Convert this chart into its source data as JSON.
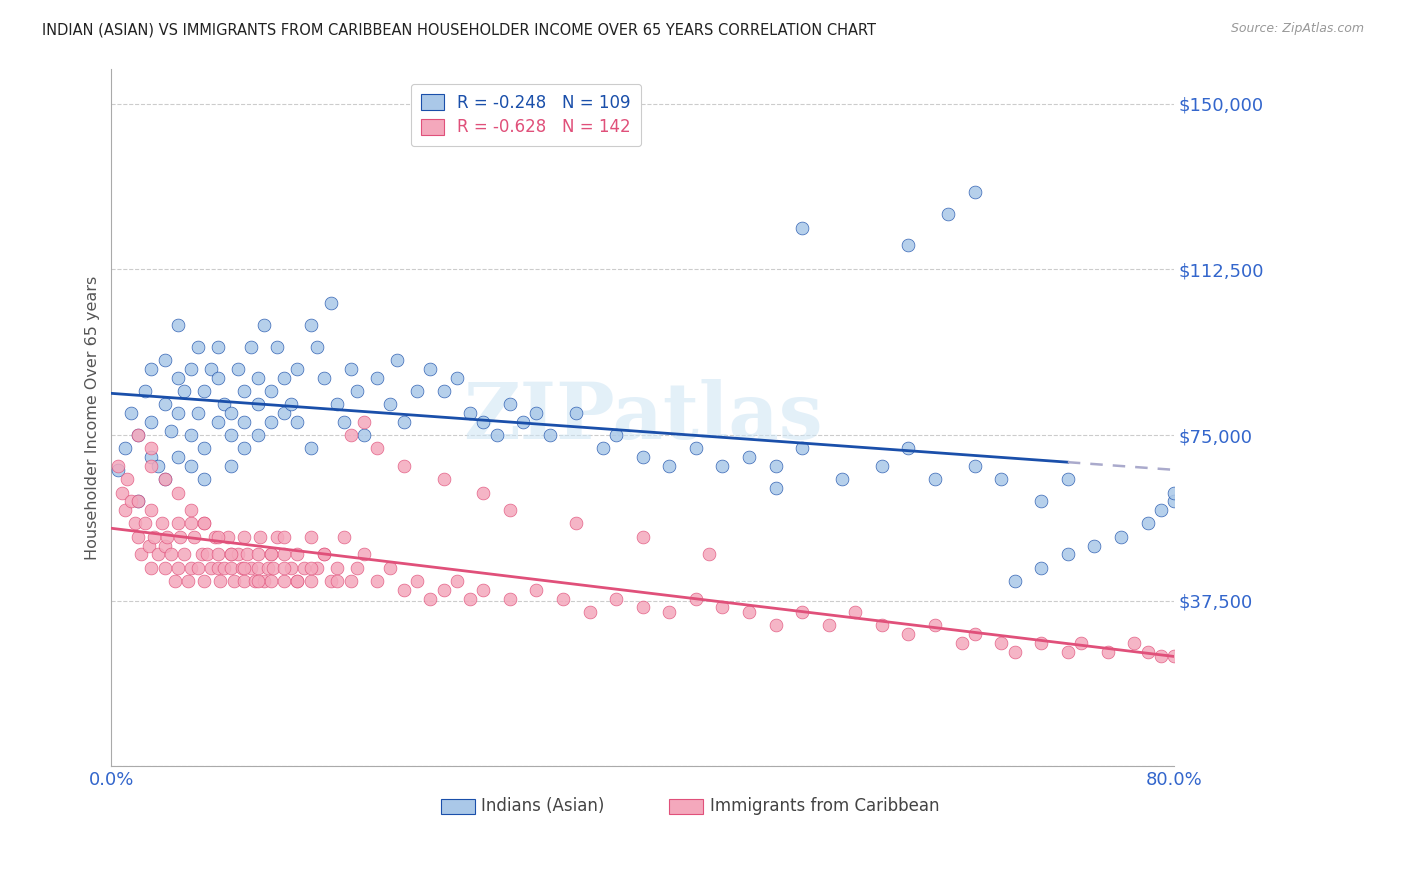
{
  "title": "INDIAN (ASIAN) VS IMMIGRANTS FROM CARIBBEAN HOUSEHOLDER INCOME OVER 65 YEARS CORRELATION CHART",
  "source": "Source: ZipAtlas.com",
  "ylabel": "Householder Income Over 65 years",
  "watermark": "ZIPatlas",
  "yticks": [
    0,
    37500,
    75000,
    112500,
    150000
  ],
  "ytick_labels": [
    "",
    "$37,500",
    "$75,000",
    "$112,500",
    "$150,000"
  ],
  "xmin": 0.0,
  "xmax": 0.8,
  "ymin": 0,
  "ymax": 158000,
  "legend_blue_r": "R = -0.248",
  "legend_blue_n": "N = 109",
  "legend_pink_r": "R = -0.628",
  "legend_pink_n": "N = 142",
  "legend_label_blue": "Indians (Asian)",
  "legend_label_pink": "Immigrants from Caribbean",
  "blue_color": "#aac8e8",
  "pink_color": "#f4a8bc",
  "blue_line_color": "#1a4faa",
  "pink_line_color": "#e0507a",
  "title_color": "#333333",
  "axis_label_color": "#555555",
  "ytick_color": "#3366cc",
  "xtick_color": "#3366cc",
  "grid_color": "#cccccc",
  "blue_scatter_x": [
    0.005,
    0.01,
    0.015,
    0.02,
    0.02,
    0.025,
    0.03,
    0.03,
    0.03,
    0.035,
    0.04,
    0.04,
    0.04,
    0.045,
    0.05,
    0.05,
    0.05,
    0.05,
    0.055,
    0.06,
    0.06,
    0.06,
    0.065,
    0.065,
    0.07,
    0.07,
    0.07,
    0.075,
    0.08,
    0.08,
    0.08,
    0.085,
    0.09,
    0.09,
    0.09,
    0.095,
    0.1,
    0.1,
    0.1,
    0.105,
    0.11,
    0.11,
    0.11,
    0.115,
    0.12,
    0.12,
    0.125,
    0.13,
    0.13,
    0.135,
    0.14,
    0.14,
    0.15,
    0.15,
    0.155,
    0.16,
    0.165,
    0.17,
    0.175,
    0.18,
    0.185,
    0.19,
    0.2,
    0.21,
    0.215,
    0.22,
    0.23,
    0.24,
    0.25,
    0.26,
    0.27,
    0.28,
    0.29,
    0.3,
    0.31,
    0.32,
    0.33,
    0.35,
    0.37,
    0.38,
    0.4,
    0.42,
    0.44,
    0.46,
    0.48,
    0.5,
    0.52,
    0.55,
    0.58,
    0.6,
    0.62,
    0.65,
    0.67,
    0.7,
    0.72,
    0.52,
    0.6,
    0.63,
    0.65,
    0.68,
    0.7,
    0.72,
    0.74,
    0.76,
    0.78,
    0.79,
    0.8,
    0.8,
    0.5
  ],
  "blue_scatter_y": [
    67000,
    72000,
    80000,
    75000,
    60000,
    85000,
    70000,
    78000,
    90000,
    68000,
    82000,
    92000,
    65000,
    76000,
    80000,
    88000,
    70000,
    100000,
    85000,
    90000,
    75000,
    68000,
    95000,
    80000,
    85000,
    72000,
    65000,
    90000,
    88000,
    95000,
    78000,
    82000,
    80000,
    75000,
    68000,
    90000,
    85000,
    78000,
    72000,
    95000,
    82000,
    88000,
    75000,
    100000,
    85000,
    78000,
    95000,
    88000,
    80000,
    82000,
    90000,
    78000,
    100000,
    72000,
    95000,
    88000,
    105000,
    82000,
    78000,
    90000,
    85000,
    75000,
    88000,
    82000,
    92000,
    78000,
    85000,
    90000,
    85000,
    88000,
    80000,
    78000,
    75000,
    82000,
    78000,
    80000,
    75000,
    80000,
    72000,
    75000,
    70000,
    68000,
    72000,
    68000,
    70000,
    68000,
    72000,
    65000,
    68000,
    72000,
    65000,
    68000,
    65000,
    60000,
    65000,
    122000,
    118000,
    125000,
    130000,
    42000,
    45000,
    48000,
    50000,
    52000,
    55000,
    58000,
    60000,
    62000,
    63000
  ],
  "pink_scatter_x": [
    0.005,
    0.008,
    0.01,
    0.012,
    0.015,
    0.018,
    0.02,
    0.02,
    0.022,
    0.025,
    0.028,
    0.03,
    0.03,
    0.032,
    0.035,
    0.038,
    0.04,
    0.04,
    0.042,
    0.045,
    0.048,
    0.05,
    0.05,
    0.052,
    0.055,
    0.058,
    0.06,
    0.06,
    0.062,
    0.065,
    0.068,
    0.07,
    0.07,
    0.072,
    0.075,
    0.078,
    0.08,
    0.08,
    0.082,
    0.085,
    0.088,
    0.09,
    0.09,
    0.092,
    0.095,
    0.098,
    0.1,
    0.1,
    0.102,
    0.105,
    0.108,
    0.11,
    0.11,
    0.112,
    0.115,
    0.118,
    0.12,
    0.12,
    0.122,
    0.125,
    0.13,
    0.13,
    0.135,
    0.14,
    0.14,
    0.145,
    0.15,
    0.15,
    0.155,
    0.16,
    0.165,
    0.17,
    0.175,
    0.18,
    0.185,
    0.19,
    0.2,
    0.21,
    0.22,
    0.23,
    0.24,
    0.25,
    0.26,
    0.27,
    0.28,
    0.3,
    0.32,
    0.34,
    0.36,
    0.38,
    0.4,
    0.42,
    0.44,
    0.46,
    0.48,
    0.5,
    0.52,
    0.54,
    0.56,
    0.58,
    0.6,
    0.62,
    0.64,
    0.65,
    0.67,
    0.68,
    0.7,
    0.72,
    0.73,
    0.75,
    0.77,
    0.78,
    0.79,
    0.8,
    0.02,
    0.03,
    0.03,
    0.04,
    0.05,
    0.06,
    0.07,
    0.08,
    0.09,
    0.1,
    0.11,
    0.12,
    0.13,
    0.13,
    0.14,
    0.15,
    0.16,
    0.17,
    0.18,
    0.19,
    0.2,
    0.22,
    0.25,
    0.28,
    0.3,
    0.35,
    0.4,
    0.45
  ],
  "pink_scatter_y": [
    68000,
    62000,
    58000,
    65000,
    60000,
    55000,
    52000,
    60000,
    48000,
    55000,
    50000,
    58000,
    45000,
    52000,
    48000,
    55000,
    50000,
    45000,
    52000,
    48000,
    42000,
    55000,
    45000,
    52000,
    48000,
    42000,
    55000,
    45000,
    52000,
    45000,
    48000,
    55000,
    42000,
    48000,
    45000,
    52000,
    45000,
    48000,
    42000,
    45000,
    52000,
    48000,
    45000,
    42000,
    48000,
    45000,
    52000,
    42000,
    48000,
    45000,
    42000,
    48000,
    45000,
    52000,
    42000,
    45000,
    48000,
    42000,
    45000,
    52000,
    42000,
    48000,
    45000,
    42000,
    48000,
    45000,
    52000,
    42000,
    45000,
    48000,
    42000,
    45000,
    52000,
    42000,
    45000,
    48000,
    42000,
    45000,
    40000,
    42000,
    38000,
    40000,
    42000,
    38000,
    40000,
    38000,
    40000,
    38000,
    35000,
    38000,
    36000,
    35000,
    38000,
    36000,
    35000,
    32000,
    35000,
    32000,
    35000,
    32000,
    30000,
    32000,
    28000,
    30000,
    28000,
    26000,
    28000,
    26000,
    28000,
    26000,
    28000,
    26000,
    25000,
    25000,
    75000,
    72000,
    68000,
    65000,
    62000,
    58000,
    55000,
    52000,
    48000,
    45000,
    42000,
    48000,
    45000,
    52000,
    42000,
    45000,
    48000,
    42000,
    75000,
    78000,
    72000,
    68000,
    65000,
    62000,
    58000,
    55000,
    52000,
    48000
  ]
}
